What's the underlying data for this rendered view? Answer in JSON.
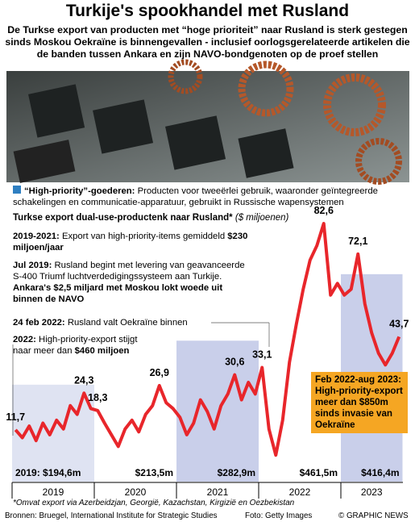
{
  "header": {
    "title": "Turkije's spookhandel met Rusland",
    "subtitle": "De Turkse export van producten met “hoge prioriteit” naar Rusland is sterk gestegen sinds Moskou Oekraïne is binnengevallen - inclusief oorlogsgerelateerde artikelen die de banden tussen Ankara en zijn NAVO-bondgenoten op de proef stellen"
  },
  "legend": {
    "term": "“High-priority”-goederen:",
    "text": "Producten voor tweeërlei gebruik, waaronder geïntegreerde schakelingen en communicatie-apparatuur, gebruikt in Russische wapensystemen"
  },
  "annotations": [
    {
      "date": "2019-2021:",
      "text": "Export van high-priority-items gemiddeld",
      "highlight": "$230 miljoen/jaar"
    },
    {
      "date": "Jul 2019:",
      "text": "Rusland begint met levering van geavanceerde S-400 Triumf luchtverdedigingssysteem aan Turkije.",
      "highlight": "Ankara's $2,5 miljard met Moskou lokt woede uit binnen de NAVO"
    },
    {
      "date": "24 feb 2022:",
      "text": "Rusland valt Oekraïne binnen"
    },
    {
      "date": "2022:",
      "text": "High-priority-export stijgt naar meer dan",
      "highlight": "$460 miljoen"
    }
  ],
  "callout": "Feb 2022-aug 2023: High-priority-export meer dan $850m sinds invasie van Oekraïne",
  "chart_data": {
    "type": "line",
    "title": "Turkse export dual-use-productenk naar Rusland*",
    "unit": "($ miljoenen)",
    "categories": [
      "2019",
      null,
      null,
      null,
      null,
      null,
      null,
      null,
      null,
      null,
      null,
      null,
      "2020",
      null,
      null,
      null,
      null,
      null,
      null,
      null,
      null,
      null,
      null,
      null,
      "2021",
      null,
      null,
      null,
      null,
      null,
      null,
      null,
      null,
      null,
      null,
      null,
      "2022",
      null,
      null,
      null,
      null,
      null,
      null,
      null,
      null,
      null,
      null,
      null,
      "2023",
      null,
      null,
      null,
      null,
      null,
      null,
      null,
      null
    ],
    "series": [
      {
        "name": "Turkse export",
        "color": "#e8262b",
        "values": [
          11.7,
          9,
          13,
          8,
          14,
          10,
          15,
          12,
          20,
          17,
          24.3,
          19,
          18.3,
          14,
          10,
          6,
          12,
          15,
          11,
          17,
          20,
          26.9,
          21,
          19,
          16,
          10,
          14,
          22,
          18,
          12,
          20,
          24,
          30.6,
          22,
          28,
          24,
          33.1,
          12,
          3,
          15,
          35,
          48,
          60,
          70,
          75,
          82.6,
          58,
          62,
          58,
          60,
          72.1,
          55,
          45,
          38,
          34,
          38,
          43.7
        ],
        "value_labels": [
          "11,7",
          null,
          null,
          null,
          null,
          null,
          null,
          null,
          null,
          null,
          "24,3",
          null,
          "18,3",
          null,
          null,
          null,
          null,
          null,
          null,
          null,
          null,
          "26,9",
          null,
          null,
          null,
          null,
          null,
          null,
          null,
          null,
          null,
          null,
          "30,6",
          null,
          null,
          null,
          "33,1",
          null,
          null,
          null,
          null,
          null,
          null,
          null,
          null,
          "82,6",
          null,
          null,
          null,
          null,
          "72,1",
          null,
          null,
          null,
          null,
          null,
          "43,7"
        ]
      }
    ],
    "annual": {
      "values": [
        194.6,
        213.5,
        282.9,
        461.5,
        416.4
      ],
      "value_labels": [
        "2019: $194,6m",
        "$213,5m",
        "$282,9m",
        "$461,5m",
        "$416,4m"
      ],
      "colors": [
        "#dfe3f2",
        "#ffffff",
        "#c9cfea",
        "#ffffff",
        "#c9cfea"
      ]
    },
    "footnote": "*Omvat export via Azerbeidzjan, Georgië, Kazachstan, Kirgizië en Oezbekistan"
  },
  "footer": {
    "sources": "Bronnen: Bruegel, International Institute for Strategic Studies",
    "photo": "Foto: Getty Images",
    "credit": "© GRAPHIC NEWS"
  }
}
